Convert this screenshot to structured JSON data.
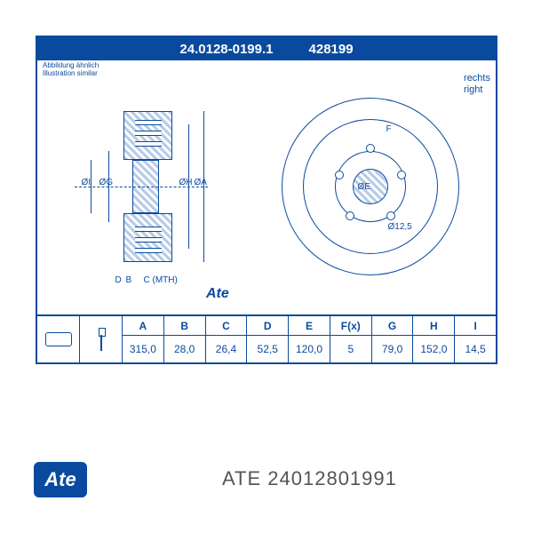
{
  "header": {
    "part_number": "24.0128-0199.1",
    "short_code": "428199"
  },
  "labels": {
    "illustration_de": "Abbildung ähnlich",
    "illustration_en": "Illustration similar",
    "side_de": "rechts",
    "side_en": "right",
    "mth": "C (MTH)",
    "diaE": "ØE",
    "diaF": "F",
    "diaHole": "Ø12,5",
    "brand_small": "Ate"
  },
  "dims": {
    "A_label": "ØA",
    "H_label": "ØH",
    "G_label": "ØG",
    "I_label": "ØI",
    "B_label": "B",
    "D_label": "D"
  },
  "spec": {
    "columns": [
      "A",
      "B",
      "C",
      "D",
      "E",
      "F(x)",
      "G",
      "H",
      "I"
    ],
    "values": [
      "315,0",
      "28,0",
      "26,4",
      "52,5",
      "120,0",
      "5",
      "79,0",
      "152,0",
      "14,5"
    ]
  },
  "footer": {
    "brand": "Ate",
    "brand_text": "ATE",
    "code": "24012801991"
  },
  "style": {
    "primary": "#0a4a9e",
    "background": "#ffffff",
    "hatch_light": "#b8cce8"
  }
}
